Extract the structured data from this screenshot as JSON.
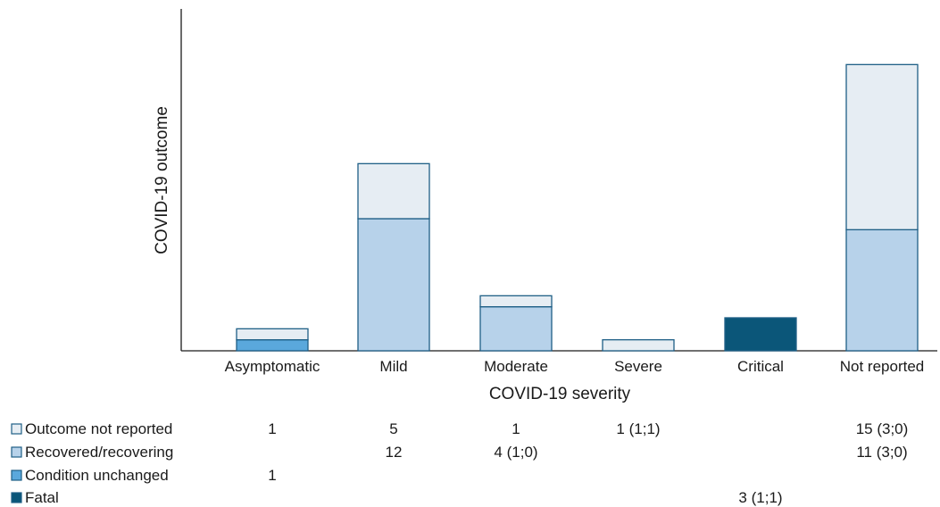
{
  "chart_data": {
    "type": "bar",
    "stacked": true,
    "xlabel": "COVID-19 severity",
    "ylabel": "COVID-19 outcome",
    "categories": [
      "Asymptomatic",
      "Mild",
      "Moderate",
      "Severe",
      "Critical",
      "Not reported"
    ],
    "ylim": [
      0,
      27
    ],
    "grid": false,
    "series": [
      {
        "name": "Fatal",
        "color": "#0b5679",
        "values": [
          0,
          0,
          0,
          0,
          3,
          0
        ],
        "labels": [
          "",
          "",
          "",
          "",
          "3 (1;1)",
          ""
        ]
      },
      {
        "name": "Condition unchanged",
        "color": "#5aa8dc",
        "values": [
          1,
          0,
          0,
          0,
          0,
          0
        ],
        "labels": [
          "1",
          "",
          "",
          "",
          "",
          ""
        ]
      },
      {
        "name": "Recovered/recovering",
        "color": "#b7d2ea",
        "values": [
          0,
          12,
          4,
          0,
          0,
          11
        ],
        "labels": [
          "",
          "12",
          "4 (1;0)",
          "",
          "",
          "11 (3;0)"
        ]
      },
      {
        "name": "Outcome not reported",
        "color": "#e6edf3",
        "values": [
          1,
          5,
          1,
          1,
          0,
          15
        ],
        "labels": [
          "1",
          "5",
          "1",
          "1 (1;1)",
          "",
          "15 (3;0)"
        ]
      }
    ],
    "table_order": [
      "Outcome not reported",
      "Recovered/recovering",
      "Condition unchanged",
      "Fatal"
    ],
    "stroke_color": "#1f5f86"
  }
}
